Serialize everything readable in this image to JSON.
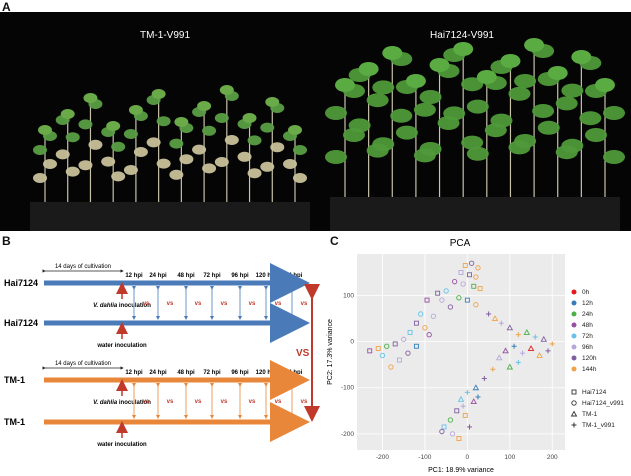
{
  "panels": {
    "a": {
      "letter": "A",
      "left_label": "TM-1-V991",
      "right_label": "Hai7124-V991"
    },
    "b": {
      "letter": "B",
      "cultivation_label": "14 days of cultivation",
      "timepoints": [
        "12 hpi",
        "24 hpi",
        "48 hpi",
        "72 hpi",
        "96 hpi",
        "120 hpi",
        "144 hpi"
      ],
      "vs_label": "vs",
      "big_vs_label": "VS",
      "genotypes": [
        "Hai7124",
        "TM-1"
      ],
      "treatment_inoculation_italic": "V. dahlia",
      "treatment_inoculation_suffix": " inoculation",
      "control_inoculation": "water inoculation",
      "colors": {
        "hai": "#4a7ab8",
        "tm": "#e8873a",
        "vs": "#c0392b"
      }
    },
    "c": {
      "letter": "C"
    }
  },
  "chart_data": {
    "type": "scatter",
    "title": "PCA",
    "xlabel": "PC1: 18.9% variance",
    "ylabel": "PC2: 17.3% variance",
    "xlim": [
      -260,
      230
    ],
    "ylim": [
      -235,
      190
    ],
    "xticks": [
      -200,
      -100,
      0,
      100,
      200
    ],
    "yticks": [
      -200,
      -100,
      0,
      100
    ],
    "grid": true,
    "legend_placement": "right",
    "time_legend": [
      {
        "name": "0h",
        "color": "#e41a1c"
      },
      {
        "name": "12h",
        "color": "#377eb8"
      },
      {
        "name": "24h",
        "color": "#4daf4a"
      },
      {
        "name": "48h",
        "color": "#984ea3"
      },
      {
        "name": "72h",
        "color": "#66c2e8"
      },
      {
        "name": "96h",
        "color": "#b8a7d9"
      },
      {
        "name": "120h",
        "color": "#7f5f9f"
      },
      {
        "name": "144h",
        "color": "#f0a24a"
      }
    ],
    "shape_legend": [
      {
        "name": "Hai7124",
        "shape": "square"
      },
      {
        "name": "Hai7124_v991",
        "shape": "circle"
      },
      {
        "name": "TM-1",
        "shape": "triangle"
      },
      {
        "name": "TM-1_v991",
        "shape": "plus"
      }
    ],
    "points": [
      {
        "x": -5,
        "y": 165,
        "t": 7,
        "s": 0
      },
      {
        "x": 10,
        "y": 170,
        "t": 6,
        "s": 1
      },
      {
        "x": 25,
        "y": 160,
        "t": 7,
        "s": 1
      },
      {
        "x": -15,
        "y": 150,
        "t": 5,
        "s": 0
      },
      {
        "x": 5,
        "y": 145,
        "t": 6,
        "s": 0
      },
      {
        "x": 20,
        "y": 140,
        "t": 7,
        "s": 1
      },
      {
        "x": -30,
        "y": 130,
        "t": 3,
        "s": 1
      },
      {
        "x": -10,
        "y": 125,
        "t": 5,
        "s": 1
      },
      {
        "x": 15,
        "y": 120,
        "t": 2,
        "s": 0
      },
      {
        "x": -50,
        "y": 110,
        "t": 4,
        "s": 1
      },
      {
        "x": -70,
        "y": 105,
        "t": 6,
        "s": 0
      },
      {
        "x": 30,
        "y": 115,
        "t": 7,
        "s": 0
      },
      {
        "x": -95,
        "y": 90,
        "t": 3,
        "s": 0
      },
      {
        "x": -60,
        "y": 90,
        "t": 5,
        "s": 1
      },
      {
        "x": -20,
        "y": 95,
        "t": 2,
        "s": 1
      },
      {
        "x": 0,
        "y": 90,
        "t": 1,
        "s": 0
      },
      {
        "x": -40,
        "y": 75,
        "t": 6,
        "s": 1
      },
      {
        "x": 20,
        "y": 80,
        "t": 7,
        "s": 1
      },
      {
        "x": -110,
        "y": 60,
        "t": 4,
        "s": 1
      },
      {
        "x": -80,
        "y": 55,
        "t": 5,
        "s": 1
      },
      {
        "x": -120,
        "y": 40,
        "t": 6,
        "s": 0
      },
      {
        "x": -100,
        "y": 30,
        "t": 7,
        "s": 1
      },
      {
        "x": -135,
        "y": 20,
        "t": 4,
        "s": 0
      },
      {
        "x": -90,
        "y": 15,
        "t": 3,
        "s": 1
      },
      {
        "x": -150,
        "y": 5,
        "t": 5,
        "s": 1
      },
      {
        "x": -170,
        "y": -5,
        "t": 6,
        "s": 0
      },
      {
        "x": -190,
        "y": -10,
        "t": 2,
        "s": 1
      },
      {
        "x": -210,
        "y": -15,
        "t": 7,
        "s": 0
      },
      {
        "x": -230,
        "y": -20,
        "t": 3,
        "s": 0
      },
      {
        "x": -200,
        "y": -30,
        "t": 4,
        "s": 1
      },
      {
        "x": -160,
        "y": -40,
        "t": 5,
        "s": 0
      },
      {
        "x": -180,
        "y": -55,
        "t": 7,
        "s": 1
      },
      {
        "x": -140,
        "y": -25,
        "t": 6,
        "s": 1
      },
      {
        "x": -120,
        "y": -10,
        "t": 1,
        "s": 0
      },
      {
        "x": 80,
        "y": 40,
        "t": 5,
        "s": 3
      },
      {
        "x": 100,
        "y": 30,
        "t": 6,
        "s": 2
      },
      {
        "x": 120,
        "y": 15,
        "t": 7,
        "s": 3
      },
      {
        "x": 140,
        "y": 20,
        "t": 2,
        "s": 2
      },
      {
        "x": 160,
        "y": 10,
        "t": 4,
        "s": 3
      },
      {
        "x": 180,
        "y": 5,
        "t": 6,
        "s": 2
      },
      {
        "x": 200,
        "y": -5,
        "t": 7,
        "s": 3
      },
      {
        "x": 110,
        "y": -10,
        "t": 1,
        "s": 3
      },
      {
        "x": 90,
        "y": -20,
        "t": 3,
        "s": 2
      },
      {
        "x": 130,
        "y": -25,
        "t": 5,
        "s": 3
      },
      {
        "x": 150,
        "y": -15,
        "t": 0,
        "s": 2
      },
      {
        "x": 170,
        "y": -30,
        "t": 7,
        "s": 2
      },
      {
        "x": 190,
        "y": -20,
        "t": 6,
        "s": 3
      },
      {
        "x": 120,
        "y": -45,
        "t": 4,
        "s": 3
      },
      {
        "x": 100,
        "y": -55,
        "t": 2,
        "s": 2
      },
      {
        "x": 75,
        "y": -35,
        "t": 5,
        "s": 2
      },
      {
        "x": 60,
        "y": -60,
        "t": 7,
        "s": 3
      },
      {
        "x": 40,
        "y": -80,
        "t": 6,
        "s": 3
      },
      {
        "x": 20,
        "y": -100,
        "t": 1,
        "s": 2
      },
      {
        "x": 0,
        "y": -110,
        "t": 4,
        "s": 3
      },
      {
        "x": 15,
        "y": -130,
        "t": 3,
        "s": 2
      },
      {
        "x": -10,
        "y": -140,
        "t": 5,
        "s": 3
      },
      {
        "x": -5,
        "y": -160,
        "t": 7,
        "s": 0
      },
      {
        "x": -25,
        "y": -150,
        "t": 6,
        "s": 0
      },
      {
        "x": -40,
        "y": -170,
        "t": 2,
        "s": 1
      },
      {
        "x": -55,
        "y": -185,
        "t": 4,
        "s": 0
      },
      {
        "x": -35,
        "y": -200,
        "t": 5,
        "s": 1
      },
      {
        "x": -20,
        "y": -210,
        "t": 7,
        "s": 0
      },
      {
        "x": -60,
        "y": -195,
        "t": 6,
        "s": 1
      },
      {
        "x": 5,
        "y": -185,
        "t": 3,
        "s": 3
      },
      {
        "x": 25,
        "y": -120,
        "t": 1,
        "s": 3
      },
      {
        "x": -15,
        "y": -125,
        "t": 4,
        "s": 2
      },
      {
        "x": 50,
        "y": 60,
        "t": 6,
        "s": 3
      },
      {
        "x": 65,
        "y": 50,
        "t": 7,
        "s": 2
      }
    ]
  }
}
